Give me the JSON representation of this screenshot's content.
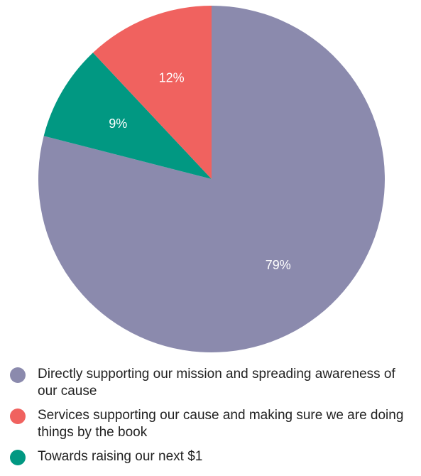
{
  "chart_data": {
    "type": "pie",
    "slices": [
      {
        "label": "Directly supporting our mission and spreading awareness of our cause",
        "value": 79,
        "display": "79%",
        "color": "#8b8aad"
      },
      {
        "label": "Towards raising our next $1",
        "value": 9,
        "display": "9%",
        "color": "#019882"
      },
      {
        "label": "Services supporting our cause and making sure we are doing things by the book",
        "value": 12,
        "display": "12%",
        "color": "#f0625f"
      }
    ],
    "legend": [
      {
        "label": "Directly supporting our mission and spreading awareness of our cause",
        "color": "#8b8aad"
      },
      {
        "label": "Services supporting our cause and making sure we are doing things by the book",
        "color": "#f0625f"
      },
      {
        "label": "Towards raising our next $1",
        "color": "#019882"
      }
    ],
    "legend_placement": "bottom"
  }
}
